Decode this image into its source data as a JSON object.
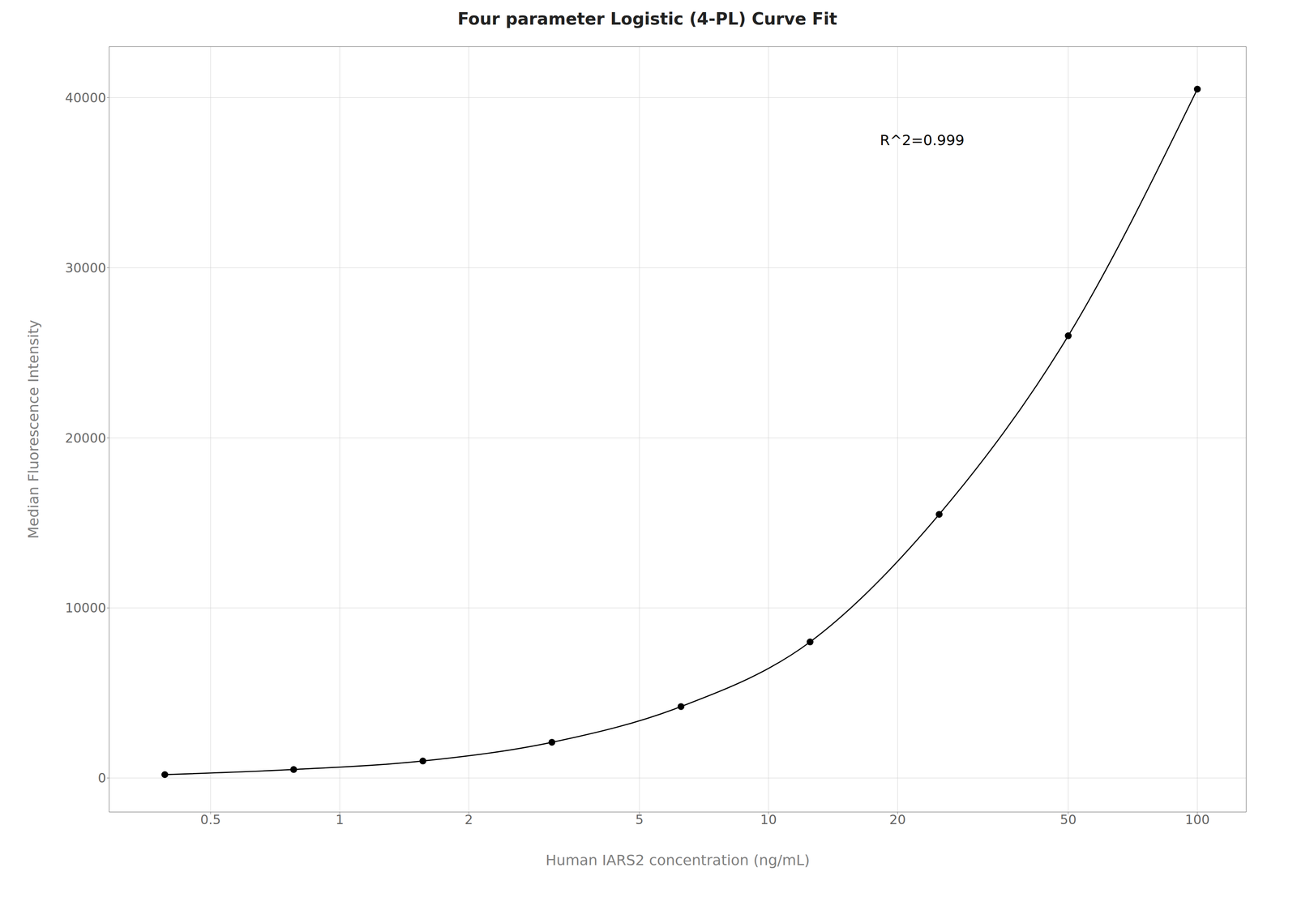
{
  "chart_data": {
    "type": "scatter",
    "title": "Four parameter Logistic (4-PL) Curve Fit",
    "x_label": "Human IARS2 concentration (ng/mL)",
    "y_label": "Median Fluorescence Intensity",
    "annotation": {
      "text": "R^2=0.999",
      "x": 18,
      "y": 37500
    },
    "x": [
      0.391,
      0.781,
      1.563,
      3.125,
      6.25,
      12.5,
      25,
      50,
      100
    ],
    "values": [
      200,
      500,
      1000,
      2100,
      4200,
      8000,
      15500,
      26000,
      40500
    ],
    "color": "#000000",
    "marker": "circle",
    "line_style": "solid",
    "log": "x",
    "grid": true,
    "xlim": [
      0.29,
      130
    ],
    "ylim": [
      -2000,
      43000
    ],
    "xticks": [
      0.5,
      1,
      2,
      5,
      10,
      20,
      50,
      100
    ],
    "yticks": [
      0,
      10000,
      20000,
      30000,
      40000
    ]
  }
}
